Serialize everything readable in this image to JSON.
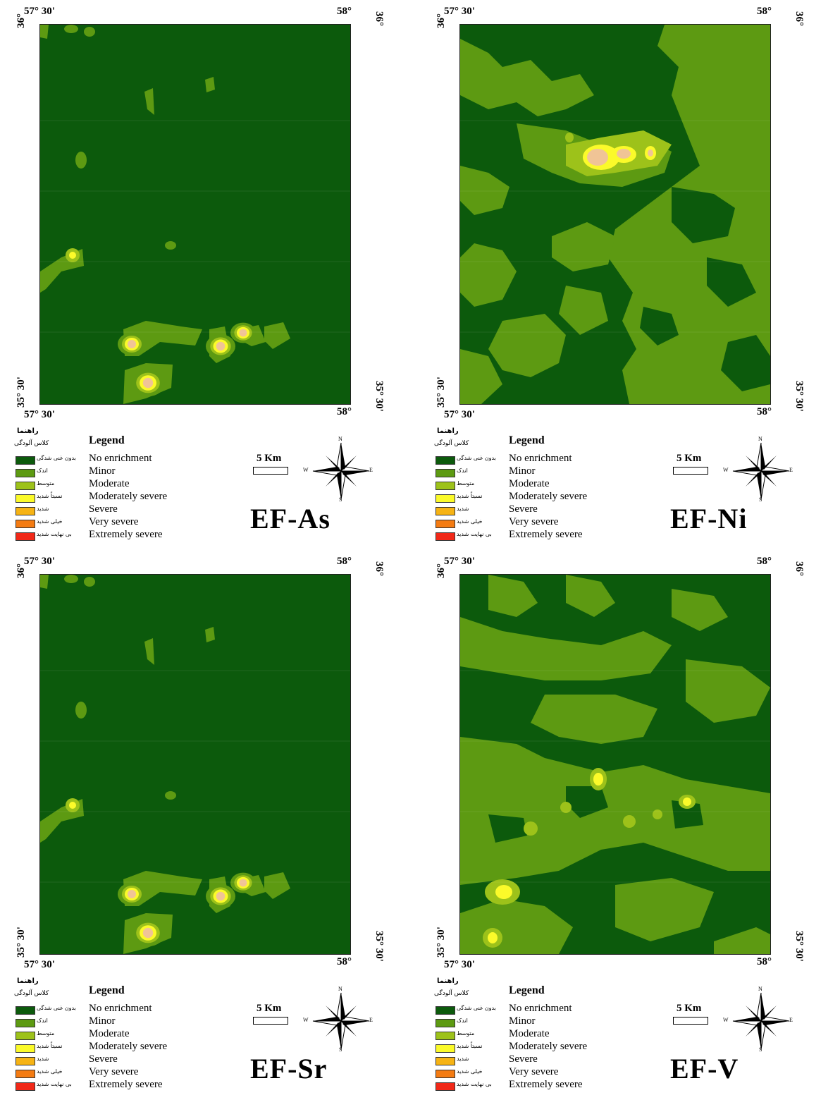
{
  "colors": {
    "no_enrichment": "#0c5a0c",
    "minor": "#5d9a12",
    "moderate": "#9dc21a",
    "moderately_severe": "#fbfa2a",
    "severe": "#f6b314",
    "very_severe": "#f47b12",
    "extremely_severe": "#f12818",
    "core": "#f0c496"
  },
  "labels": {
    "top_left": "57° 30'",
    "top_right": "58°",
    "bottom_left": "57° 30'",
    "bottom_right": "58°",
    "left_top": "36°",
    "left_bottom": "35° 30'",
    "right_top": "36°",
    "right_bottom": "35° 30'"
  },
  "legend": {
    "fa_title": "راهنما",
    "fa_subtitle": "کلاس آلودگی",
    "en_title": "Legend",
    "items": [
      {
        "fa": "بدون غنی شدگی",
        "en": "No enrichment",
        "color": "#0c5a0c"
      },
      {
        "fa": "اندک",
        "en": "Minor",
        "color": "#5d9a12"
      },
      {
        "fa": "متوسط",
        "en": "Moderate",
        "color": "#9dc21a"
      },
      {
        "fa": "نسبتاً شدید",
        "en": "Moderately severe",
        "color": "#fbfa2a"
      },
      {
        "fa": "شدید",
        "en": "Severe",
        "color": "#f6b314"
      },
      {
        "fa": "خیلی شدید",
        "en": "Very severe",
        "color": "#f47b12"
      },
      {
        "fa": "بی نهایت شدید",
        "en": "Extremely severe",
        "color": "#f12818"
      }
    ]
  },
  "scale": {
    "label": "5 Km"
  },
  "compass": {
    "n": "N",
    "s": "S",
    "e": "E",
    "w": "W"
  },
  "maps": [
    {
      "title": "EF-As"
    },
    {
      "title": "EF-Ni"
    },
    {
      "title": "EF-Sr"
    },
    {
      "title": "EF-V"
    }
  ]
}
